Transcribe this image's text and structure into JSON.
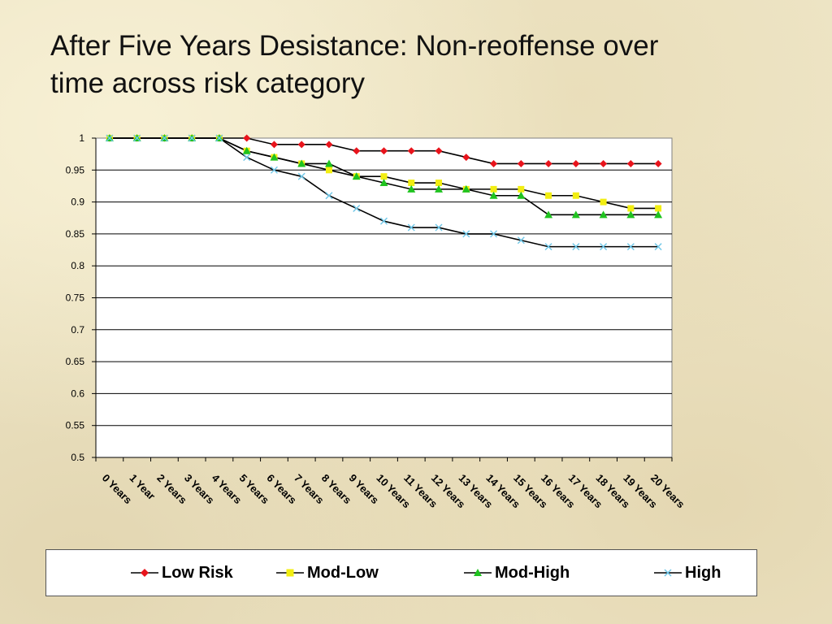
{
  "slide": {
    "title_line1": "After Five Years Desistance: Non-reoffense over",
    "title_line2": "time across risk category"
  },
  "chart_data": {
    "type": "line",
    "title": "",
    "xlabel": "",
    "ylabel": "",
    "ylim": [
      0.5,
      1
    ],
    "yticks": [
      "1",
      "0.95",
      "0.9",
      "0.85",
      "0.8",
      "0.75",
      "0.7",
      "0.65",
      "0.6",
      "0.55",
      "0.5"
    ],
    "grid": "horizontal",
    "legend_position": "bottom",
    "categories": [
      "0 Years",
      "1 Year",
      "2 Years",
      "3 Years",
      "4 Years",
      "5 Years",
      "6 Years",
      "7 Years",
      "8 Years",
      "9 Years",
      "10 Years",
      "11 Years",
      "12 Years",
      "13 Years",
      "14 Years",
      "15 Years",
      "16 Years",
      "17 Years",
      "18 Years",
      "19 Years",
      "20 Years"
    ],
    "series": [
      {
        "name": "Low Risk",
        "color": "#e8141c",
        "marker": "diamond",
        "values": [
          1,
          1,
          1,
          1,
          1,
          1,
          0.99,
          0.99,
          0.99,
          0.98,
          0.98,
          0.98,
          0.98,
          0.97,
          0.96,
          0.96,
          0.96,
          0.96,
          0.96,
          0.96,
          0.96
        ]
      },
      {
        "name": "Mod-Low",
        "color": "#f2ee12",
        "marker": "square",
        "values": [
          1,
          1,
          1,
          1,
          1,
          0.98,
          0.97,
          0.96,
          0.95,
          0.94,
          0.94,
          0.93,
          0.93,
          0.92,
          0.92,
          0.92,
          0.91,
          0.91,
          0.9,
          0.89,
          0.89
        ]
      },
      {
        "name": "Mod-High",
        "color": "#1fc31f",
        "marker": "triangle",
        "values": [
          1,
          1,
          1,
          1,
          1,
          0.98,
          0.97,
          0.96,
          0.96,
          0.94,
          0.93,
          0.92,
          0.92,
          0.92,
          0.91,
          0.91,
          0.88,
          0.88,
          0.88,
          0.88,
          0.88
        ]
      },
      {
        "name": "High",
        "color": "#6fc7e8",
        "marker": "x",
        "values": [
          1,
          1,
          1,
          1,
          1,
          0.97,
          0.95,
          0.94,
          0.91,
          0.89,
          0.87,
          0.86,
          0.86,
          0.85,
          0.85,
          0.84,
          0.83,
          0.83,
          0.83,
          0.83,
          0.83
        ]
      }
    ]
  }
}
